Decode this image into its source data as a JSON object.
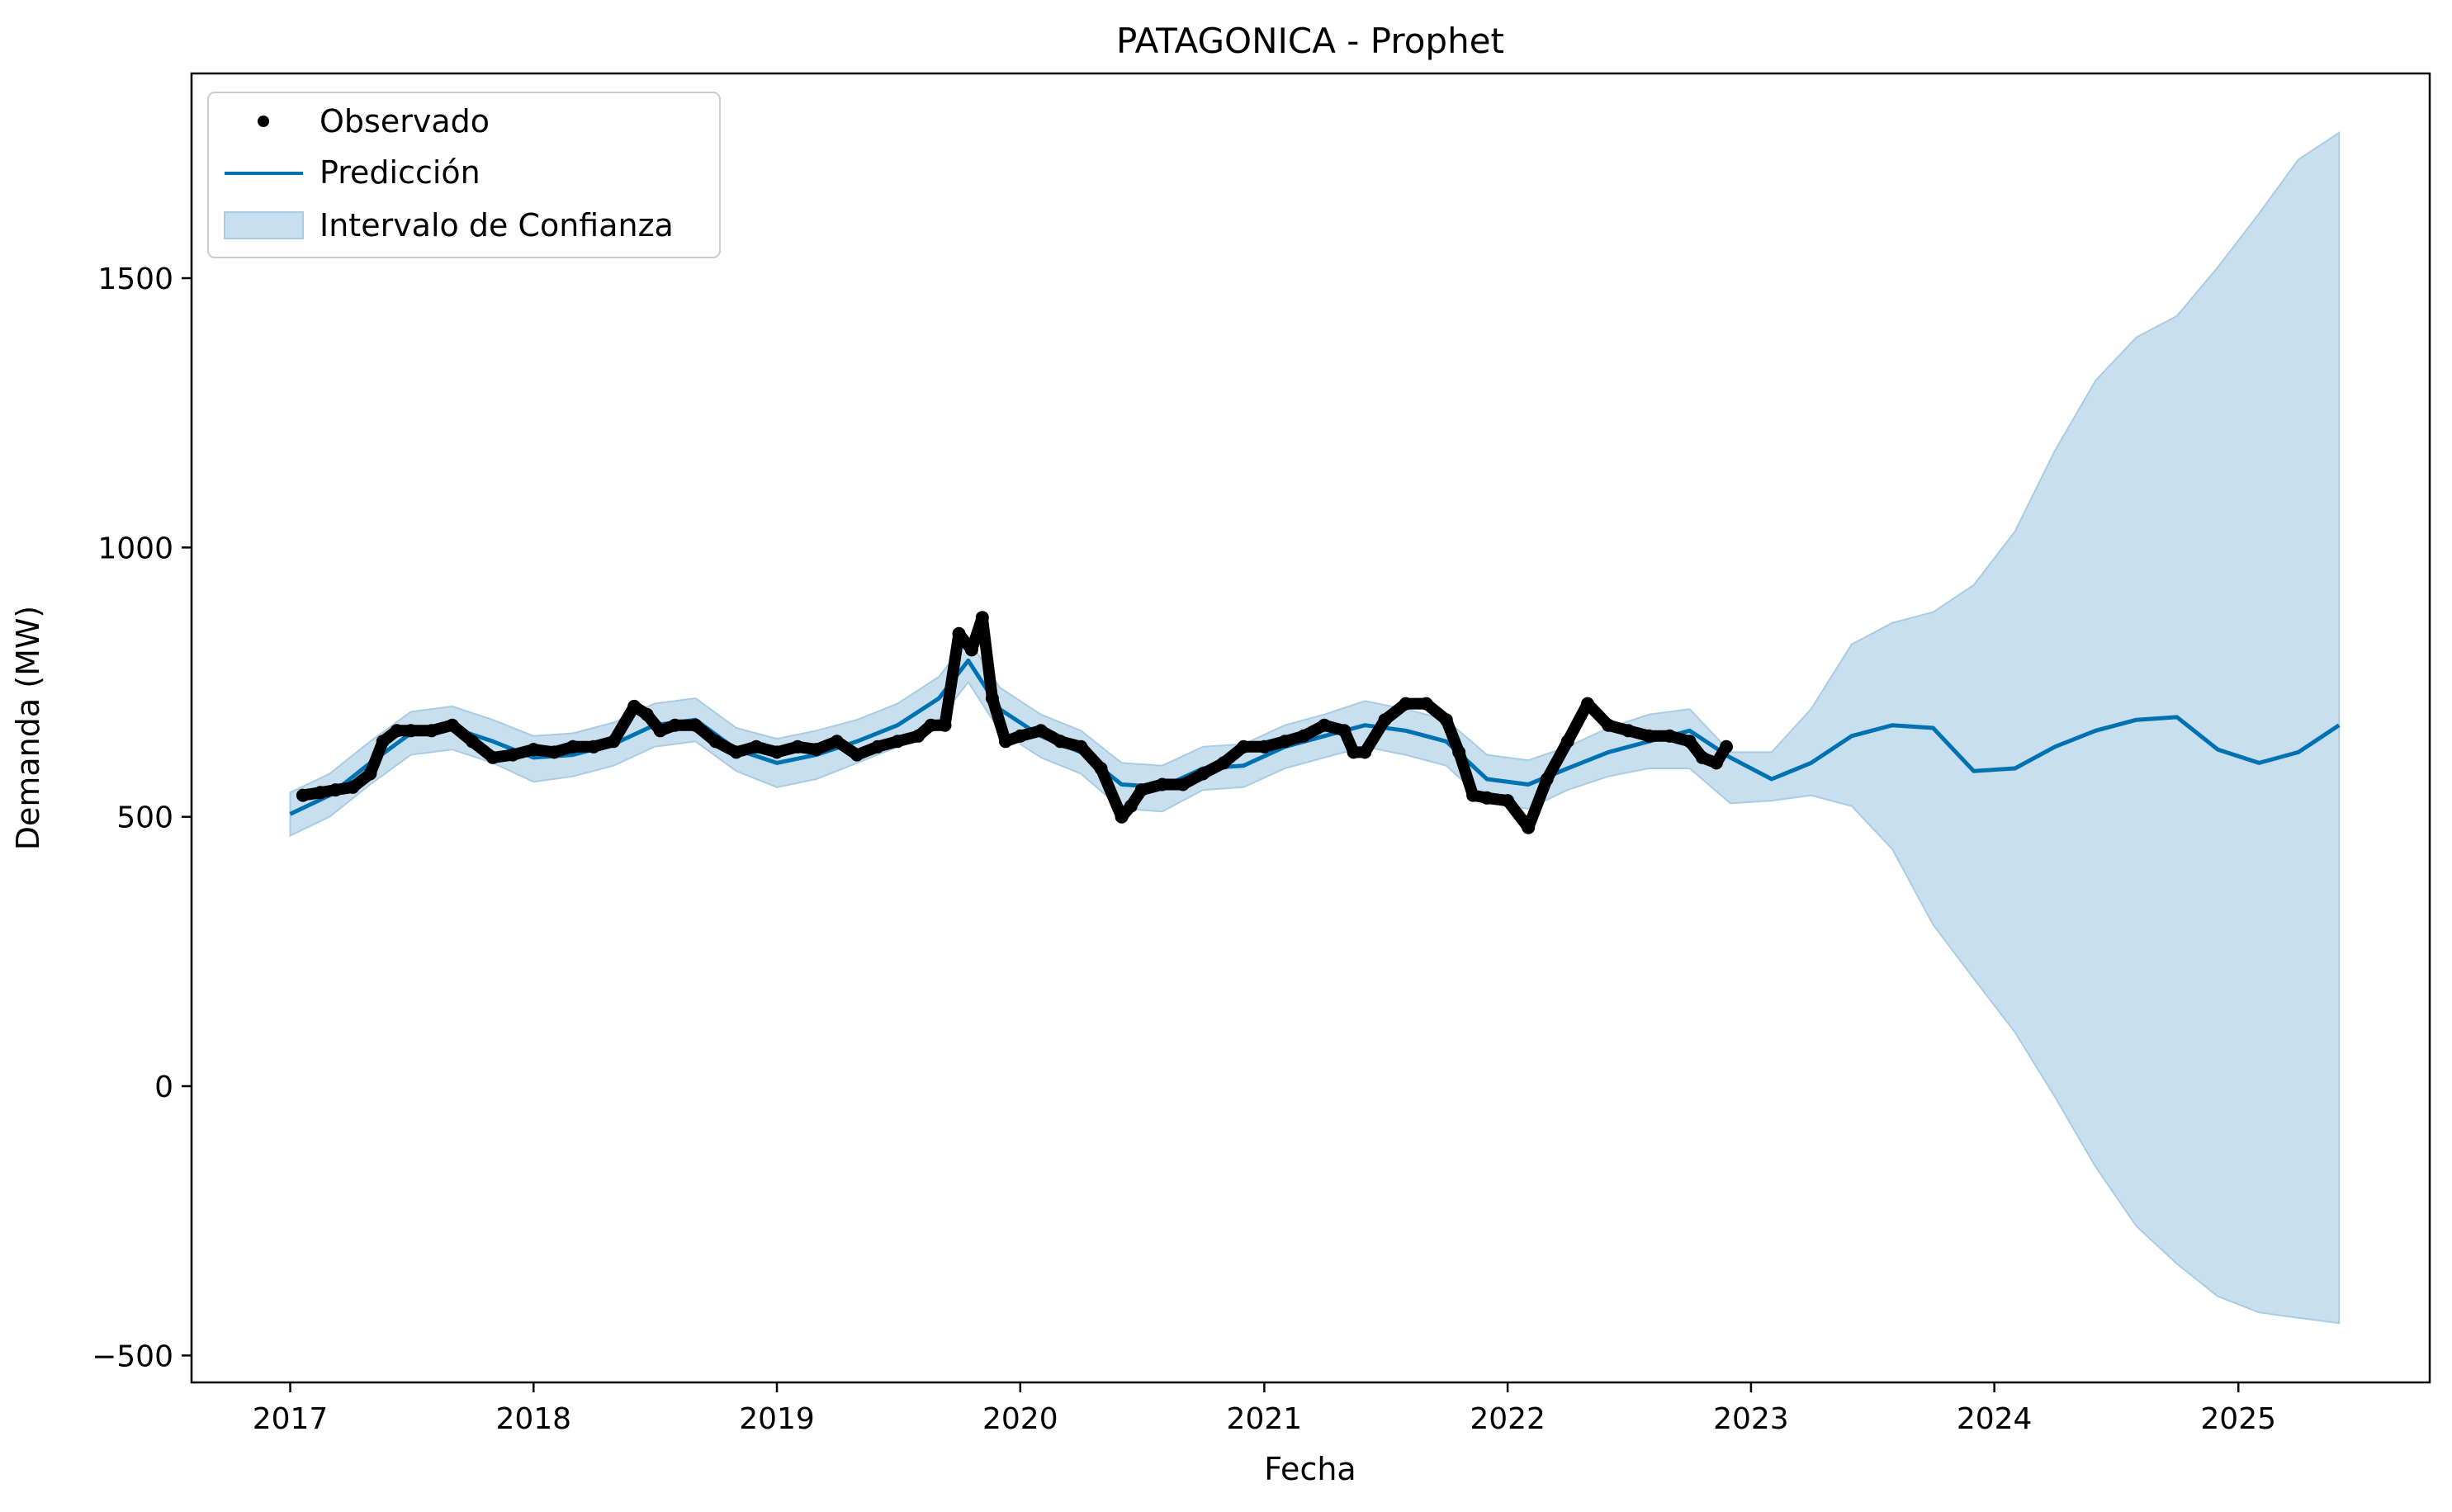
{
  "chart_data": {
    "type": "line",
    "title": "PATAGONICA - Prophet",
    "xlabel": "Fecha",
    "ylabel": "Demanda (MW)",
    "xlim": [
      "2016-08-06",
      "2025-10-15"
    ],
    "ylim": [
      -550,
      1880
    ],
    "x_ticks": [
      "2017",
      "2018",
      "2019",
      "2020",
      "2021",
      "2022",
      "2023",
      "2024",
      "2025"
    ],
    "y_ticks": [
      -500,
      0,
      500,
      1000,
      1500
    ],
    "y_tick_labels": [
      "−500",
      "0",
      "500",
      "1000",
      "1500"
    ],
    "grid": false,
    "legend_position": "top-left",
    "legend": [
      "Observado",
      "Predicción",
      "Intervalo de Confianza"
    ],
    "colors": {
      "observed": "#000000",
      "prediction": "#0072b2",
      "interval_fill": "#c7dfee",
      "interval_edge": "#a9cce3"
    },
    "series": [
      {
        "name": "Observado",
        "style": "points",
        "x": [
          "2017-01-20",
          "2017-02-15",
          "2017-03-10",
          "2017-04-05",
          "2017-05-01",
          "2017-05-20",
          "2017-06-10",
          "2017-07-01",
          "2017-08-01",
          "2017-09-01",
          "2017-10-01",
          "2017-11-01",
          "2017-12-01",
          "2018-01-01",
          "2018-02-01",
          "2018-03-01",
          "2018-04-01",
          "2018-05-01",
          "2018-06-01",
          "2018-06-20",
          "2018-07-10",
          "2018-08-01",
          "2018-09-01",
          "2018-10-01",
          "2018-11-01",
          "2018-12-01",
          "2019-01-01",
          "2019-02-01",
          "2019-03-01",
          "2019-04-01",
          "2019-05-01",
          "2019-06-01",
          "2019-07-01",
          "2019-08-01",
          "2019-08-20",
          "2019-09-10",
          "2019-10-01",
          "2019-10-20",
          "2019-11-05",
          "2019-11-20",
          "2019-12-10",
          "2020-01-01",
          "2020-02-01",
          "2020-03-01",
          "2020-04-01",
          "2020-05-01",
          "2020-06-01",
          "2020-06-15",
          "2020-07-01",
          "2020-08-01",
          "2020-09-01",
          "2020-10-01",
          "2020-11-01",
          "2020-12-01",
          "2021-01-01",
          "2021-02-01",
          "2021-03-01",
          "2021-04-01",
          "2021-05-01",
          "2021-05-15",
          "2021-06-01",
          "2021-07-01",
          "2021-08-01",
          "2021-09-01",
          "2021-10-01",
          "2021-10-20",
          "2021-11-10",
          "2021-12-01",
          "2022-01-01",
          "2022-02-01",
          "2022-03-01",
          "2022-04-01",
          "2022-05-01",
          "2022-06-01",
          "2022-07-01",
          "2022-08-01",
          "2022-09-01",
          "2022-10-01",
          "2022-10-20",
          "2022-11-10",
          "2022-11-25"
        ],
        "y": [
          540,
          545,
          550,
          555,
          580,
          640,
          660,
          660,
          660,
          670,
          640,
          610,
          615,
          625,
          620,
          630,
          630,
          640,
          705,
          690,
          660,
          670,
          670,
          640,
          620,
          630,
          620,
          630,
          625,
          640,
          615,
          630,
          640,
          650,
          670,
          670,
          840,
          810,
          870,
          720,
          640,
          650,
          660,
          640,
          630,
          590,
          500,
          520,
          550,
          560,
          560,
          580,
          600,
          630,
          630,
          640,
          650,
          670,
          660,
          620,
          620,
          680,
          710,
          710,
          680,
          620,
          540,
          535,
          530,
          480,
          570,
          640,
          710,
          670,
          660,
          650,
          650,
          640,
          610,
          600,
          630
        ]
      },
      {
        "name": "Predicción",
        "style": "line",
        "x": [
          "2017-01-01",
          "2017-03-01",
          "2017-05-01",
          "2017-07-01",
          "2017-09-01",
          "2017-11-01",
          "2018-01-01",
          "2018-03-01",
          "2018-05-01",
          "2018-07-01",
          "2018-09-01",
          "2018-11-01",
          "2019-01-01",
          "2019-03-01",
          "2019-05-01",
          "2019-07-01",
          "2019-09-01",
          "2019-10-15",
          "2019-12-01",
          "2020-02-01",
          "2020-04-01",
          "2020-06-01",
          "2020-08-01",
          "2020-10-01",
          "2020-12-01",
          "2021-02-01",
          "2021-04-01",
          "2021-06-01",
          "2021-08-01",
          "2021-10-01",
          "2021-12-01",
          "2022-02-01",
          "2022-04-01",
          "2022-06-01",
          "2022-08-01",
          "2022-10-01",
          "2022-12-01",
          "2023-02-01",
          "2023-04-01",
          "2023-06-01",
          "2023-08-01",
          "2023-10-01",
          "2023-12-01",
          "2024-02-01",
          "2024-04-01",
          "2024-06-01",
          "2024-08-01",
          "2024-10-01",
          "2024-12-01",
          "2025-02-01",
          "2025-04-01",
          "2025-06-01"
        ],
        "y": [
          505,
          540,
          600,
          655,
          665,
          640,
          610,
          615,
          635,
          670,
          680,
          625,
          600,
          615,
          640,
          670,
          720,
          790,
          700,
          650,
          620,
          560,
          555,
          590,
          595,
          630,
          650,
          670,
          660,
          640,
          570,
          560,
          590,
          620,
          640,
          660,
          610,
          570,
          600,
          650,
          670,
          665,
          585,
          590,
          630,
          660,
          680,
          685,
          625,
          600,
          620,
          670
        ]
      },
      {
        "name": "Intervalo de Confianza",
        "style": "band",
        "x": [
          "2017-01-01",
          "2017-03-01",
          "2017-05-01",
          "2017-07-01",
          "2017-09-01",
          "2017-11-01",
          "2018-01-01",
          "2018-03-01",
          "2018-05-01",
          "2018-07-01",
          "2018-09-01",
          "2018-11-01",
          "2019-01-01",
          "2019-03-01",
          "2019-05-01",
          "2019-07-01",
          "2019-09-01",
          "2019-10-15",
          "2019-12-01",
          "2020-02-01",
          "2020-04-01",
          "2020-06-01",
          "2020-08-01",
          "2020-10-01",
          "2020-12-01",
          "2021-02-01",
          "2021-04-01",
          "2021-06-01",
          "2021-08-01",
          "2021-10-01",
          "2021-12-01",
          "2022-02-01",
          "2022-04-01",
          "2022-06-01",
          "2022-08-01",
          "2022-10-01",
          "2022-12-01",
          "2023-02-01",
          "2023-04-01",
          "2023-06-01",
          "2023-08-01",
          "2023-10-01",
          "2023-12-01",
          "2024-02-01",
          "2024-04-01",
          "2024-06-01",
          "2024-08-01",
          "2024-10-01",
          "2024-12-01",
          "2025-02-01",
          "2025-04-01",
          "2025-06-01"
        ],
        "lower": [
          465,
          500,
          560,
          615,
          625,
          600,
          565,
          575,
          595,
          630,
          640,
          585,
          555,
          570,
          600,
          630,
          680,
          750,
          660,
          610,
          580,
          515,
          510,
          550,
          555,
          590,
          610,
          630,
          615,
          595,
          525,
          515,
          550,
          575,
          590,
          590,
          525,
          530,
          540,
          520,
          440,
          300,
          200,
          100,
          -20,
          -150,
          -260,
          -330,
          -390,
          -420,
          -430,
          -440
        ],
        "upper": [
          545,
          580,
          640,
          695,
          705,
          680,
          650,
          655,
          675,
          710,
          720,
          665,
          645,
          660,
          680,
          710,
          760,
          830,
          740,
          690,
          660,
          600,
          595,
          630,
          635,
          670,
          690,
          715,
          700,
          680,
          615,
          605,
          630,
          665,
          690,
          700,
          620,
          620,
          700,
          820,
          860,
          880,
          930,
          1030,
          1180,
          1310,
          1390,
          1430,
          1520,
          1620,
          1720,
          1770
        ]
      }
    ]
  }
}
